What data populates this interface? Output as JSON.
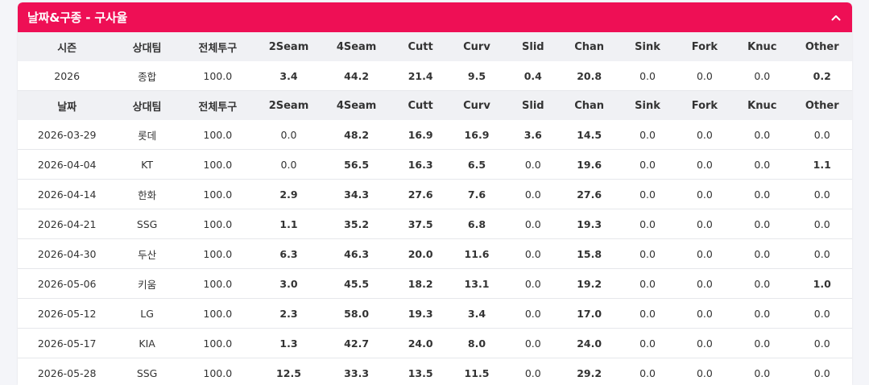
{
  "panel": {
    "title": "날짜&구종 - 구사율",
    "collapse_icon": "chevron-up-icon"
  },
  "colors": {
    "header": "#ee0f55",
    "teal": "#1d82a8",
    "green": "#0f7a2e",
    "navy": "#1c2a6b",
    "red": "#d8212f",
    "zero": "#999999"
  },
  "summary": {
    "headers": [
      "시즌",
      "상대팀",
      "전체투구",
      "2Seam",
      "4Seam",
      "Cutt",
      "Curv",
      "Slid",
      "Chan",
      "Sink",
      "Fork",
      "Knuc",
      "Other"
    ],
    "row": {
      "cells": [
        "2026",
        "종합",
        "100.0",
        "3.4",
        "44.2",
        "21.4",
        "9.5",
        "0.4",
        "20.8",
        "0.0",
        "0.0",
        "0.0",
        "0.2"
      ],
      "colors": [
        "",
        "",
        "",
        "teal",
        "green",
        "navy",
        "teal",
        "teal",
        "navy",
        "zero",
        "zero",
        "zero",
        "teal"
      ]
    }
  },
  "detail": {
    "headers": [
      "날짜",
      "상대팀",
      "전체투구",
      "2Seam",
      "4Seam",
      "Cutt",
      "Curv",
      "Slid",
      "Chan",
      "Sink",
      "Fork",
      "Knuc",
      "Other"
    ],
    "rows": [
      {
        "cells": [
          "2026-03-29",
          "롯데",
          "100.0",
          "0.0",
          "48.2",
          "16.9",
          "16.9",
          "3.6",
          "14.5",
          "0.0",
          "0.0",
          "0.0",
          "0.0"
        ],
        "colors": [
          "",
          "",
          "",
          "zero",
          "green",
          "navy",
          "navy",
          "teal",
          "teal",
          "zero",
          "zero",
          "zero",
          "zero"
        ]
      },
      {
        "cells": [
          "2026-04-04",
          "KT",
          "100.0",
          "0.0",
          "56.5",
          "16.3",
          "6.5",
          "0.0",
          "19.6",
          "0.0",
          "0.0",
          "0.0",
          "1.1"
        ],
        "colors": [
          "",
          "",
          "",
          "zero",
          "red",
          "navy",
          "teal",
          "zero",
          "navy",
          "zero",
          "zero",
          "zero",
          "teal"
        ]
      },
      {
        "cells": [
          "2026-04-14",
          "한화",
          "100.0",
          "2.9",
          "34.3",
          "27.6",
          "7.6",
          "0.0",
          "27.6",
          "0.0",
          "0.0",
          "0.0",
          "0.0"
        ],
        "colors": [
          "",
          "",
          "",
          "teal",
          "green",
          "navy",
          "teal",
          "zero",
          "navy",
          "zero",
          "zero",
          "zero",
          "zero"
        ]
      },
      {
        "cells": [
          "2026-04-21",
          "SSG",
          "100.0",
          "1.1",
          "35.2",
          "37.5",
          "6.8",
          "0.0",
          "19.3",
          "0.0",
          "0.0",
          "0.0",
          "0.0"
        ],
        "colors": [
          "",
          "",
          "",
          "teal",
          "green",
          "green",
          "teal",
          "zero",
          "navy",
          "zero",
          "zero",
          "zero",
          "zero"
        ]
      },
      {
        "cells": [
          "2026-04-30",
          "두산",
          "100.0",
          "6.3",
          "46.3",
          "20.0",
          "11.6",
          "0.0",
          "15.8",
          "0.0",
          "0.0",
          "0.0",
          "0.0"
        ],
        "colors": [
          "",
          "",
          "",
          "teal",
          "green",
          "navy",
          "teal",
          "zero",
          "navy",
          "zero",
          "zero",
          "zero",
          "zero"
        ]
      },
      {
        "cells": [
          "2026-05-06",
          "키움",
          "100.0",
          "3.0",
          "45.5",
          "18.2",
          "13.1",
          "0.0",
          "19.2",
          "0.0",
          "0.0",
          "0.0",
          "1.0"
        ],
        "colors": [
          "",
          "",
          "",
          "teal",
          "green",
          "navy",
          "teal",
          "zero",
          "navy",
          "zero",
          "zero",
          "zero",
          "teal"
        ]
      },
      {
        "cells": [
          "2026-05-12",
          "LG",
          "100.0",
          "2.3",
          "58.0",
          "19.3",
          "3.4",
          "0.0",
          "17.0",
          "0.0",
          "0.0",
          "0.0",
          "0.0"
        ],
        "colors": [
          "",
          "",
          "",
          "teal",
          "red",
          "navy",
          "teal",
          "zero",
          "navy",
          "zero",
          "zero",
          "zero",
          "zero"
        ]
      },
      {
        "cells": [
          "2026-05-17",
          "KIA",
          "100.0",
          "1.3",
          "42.7",
          "24.0",
          "8.0",
          "0.0",
          "24.0",
          "0.0",
          "0.0",
          "0.0",
          "0.0"
        ],
        "colors": [
          "",
          "",
          "",
          "teal",
          "green",
          "navy",
          "teal",
          "zero",
          "navy",
          "zero",
          "zero",
          "zero",
          "zero"
        ]
      },
      {
        "cells": [
          "2026-05-28",
          "SSG",
          "100.0",
          "12.5",
          "33.3",
          "13.5",
          "11.5",
          "0.0",
          "29.2",
          "0.0",
          "0.0",
          "0.0",
          "0.0"
        ],
        "colors": [
          "",
          "",
          "",
          "teal",
          "green",
          "teal",
          "teal",
          "zero",
          "navy",
          "zero",
          "zero",
          "zero",
          "zero"
        ]
      }
    ]
  }
}
